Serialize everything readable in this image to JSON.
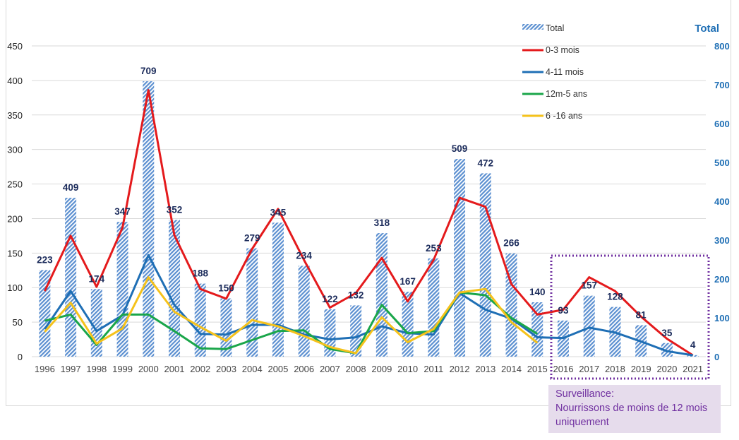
{
  "chart_data": {
    "type": "bar+line",
    "categories": [
      "1996",
      "1997",
      "1998",
      "1999",
      "2000",
      "2001",
      "2002",
      "2003",
      "2004",
      "2005",
      "2006",
      "2007",
      "2008",
      "2009",
      "2010",
      "2011",
      "2012",
      "2013",
      "2014",
      "2015",
      "2016",
      "2017",
      "2018",
      "2019",
      "2020",
      "2021"
    ],
    "left_axis": {
      "ylim": [
        0,
        450
      ],
      "ticks": [
        0,
        50,
        100,
        150,
        200,
        250,
        300,
        350,
        400,
        450
      ]
    },
    "right_axis": {
      "title": "Total",
      "ylim": [
        0,
        800
      ],
      "ticks": [
        0,
        100,
        200,
        300,
        400,
        500,
        600,
        700,
        800
      ],
      "color": "#1f6fb5"
    },
    "grid": true,
    "legend_placement": "top-right",
    "bars": {
      "name": "Total",
      "axis": "right",
      "color": "#5b8fd0",
      "pattern": "diagonal-hatch",
      "values": [
        223,
        409,
        174,
        347,
        709,
        352,
        188,
        150,
        279,
        345,
        234,
        122,
        132,
        318,
        167,
        253,
        509,
        472,
        266,
        140,
        93,
        157,
        128,
        81,
        35,
        4
      ],
      "labels": [
        "223",
        "409",
        "174",
        "347",
        "709",
        "352",
        "188",
        "150",
        "279",
        "345",
        "234",
        "122",
        "132",
        "318",
        "167",
        "253",
        "509",
        "472",
        "266",
        "140",
        "93",
        "157",
        "128",
        "81",
        "35",
        "4"
      ],
      "label_color": "#1a2a5a"
    },
    "series": [
      {
        "name": "0-3 mois",
        "axis": "left",
        "color": "#e41a1c",
        "values": [
          95,
          175,
          101,
          187,
          386,
          176,
          98,
          84,
          156,
          214,
          140,
          71,
          92,
          143,
          80,
          140,
          230,
          217,
          105,
          61,
          68,
          115,
          95,
          58,
          26,
          2
        ]
      },
      {
        "name": "4-11 mois",
        "axis": "left",
        "color": "#1f6fb5",
        "values": [
          40,
          95,
          37,
          60,
          147,
          75,
          33,
          32,
          46,
          46,
          32,
          25,
          28,
          44,
          34,
          32,
          92,
          68,
          55,
          28,
          27,
          42,
          35,
          22,
          8,
          2
        ]
      },
      {
        "name": "12m-5 ans",
        "axis": "left",
        "color": "#1aa64a",
        "values": [
          52,
          61,
          17,
          61,
          61,
          37,
          12,
          11,
          24,
          37,
          38,
          11,
          5,
          75,
          34,
          37,
          93,
          89,
          56,
          33,
          null,
          null,
          null,
          null,
          null,
          null
        ]
      },
      {
        "name": " 6 -16 ans",
        "axis": "left",
        "color": "#f5c21b",
        "values": [
          36,
          78,
          19,
          41,
          115,
          65,
          43,
          23,
          53,
          44,
          30,
          14,
          5,
          57,
          21,
          40,
          93,
          98,
          50,
          20,
          null,
          null,
          null,
          null,
          null,
          null
        ]
      }
    ],
    "annotation": {
      "lines": [
        "Surveillance:",
        "Nourrissons de moins de 12 mois",
        "uniquement"
      ],
      "color": "#7030a0",
      "box_color": "#e6dcec",
      "highlight_range": [
        "2016",
        "2021"
      ]
    }
  }
}
